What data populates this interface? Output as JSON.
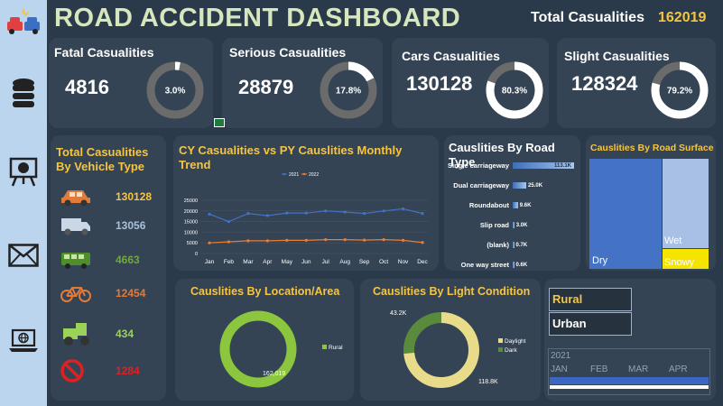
{
  "header": {
    "title": "ROAD ACCIDENT DASHBOARD",
    "total_label": "Total Casualities",
    "total_value": "162019"
  },
  "sidebar": {
    "icons": [
      "car-crash-icon",
      "database-icon",
      "presentation-icon",
      "mail-icon",
      "laptop-globe-icon"
    ]
  },
  "kpis": [
    {
      "title": "Fatal Casualities",
      "value": "4816",
      "pct_label": "3.0%",
      "pct": 0.03
    },
    {
      "title": "Serious Casualities",
      "value": "28879",
      "pct_label": "17.8%",
      "pct": 0.178
    },
    {
      "title": "Cars Casualities",
      "value": "130128",
      "pct_label": "80.3%",
      "pct": 0.803
    },
    {
      "title": "Slight Casualities",
      "value": "128324",
      "pct_label": "79.2%",
      "pct": 0.792
    }
  ],
  "vehicle": {
    "title": "Total Casualities By Vehicle Type",
    "items": [
      {
        "icon": "car-icon",
        "value": "130128",
        "color": "#f5c542"
      },
      {
        "icon": "van-icon",
        "value": "13056",
        "color": "#a9c0d8"
      },
      {
        "icon": "bus-icon",
        "value": "4663",
        "color": "#6fa83a"
      },
      {
        "icon": "bicycle-icon",
        "value": "12454",
        "color": "#e07b39"
      },
      {
        "icon": "tractor-icon",
        "value": "434",
        "color": "#9bd35a"
      },
      {
        "icon": "no-entry-icon",
        "value": "1284",
        "color": "#e02020"
      }
    ]
  },
  "slicer": {
    "options": [
      "Rural",
      "Urban"
    ],
    "year": "2021",
    "months": [
      "JAN",
      "FEB",
      "MAR",
      "APR"
    ]
  },
  "chart_data": [
    {
      "type": "line",
      "title": "CY Casualities  vs  PY Causlities Monthly Trend",
      "categories": [
        "Jan",
        "Feb",
        "Mar",
        "Apr",
        "May",
        "Jun",
        "Jul",
        "Aug",
        "Sep",
        "Oct",
        "Nov",
        "Dec"
      ],
      "series": [
        {
          "name": "2021",
          "color": "#4472c4",
          "values": [
            18500,
            15000,
            18800,
            17800,
            19000,
            19000,
            20000,
            19500,
            18800,
            20000,
            21000,
            18800
          ]
        },
        {
          "name": "2022",
          "color": "#ed7d31",
          "values": [
            5000,
            5500,
            6000,
            6000,
            6200,
            6200,
            6500,
            6500,
            6300,
            6500,
            6200,
            5200
          ]
        }
      ],
      "ylim": [
        0,
        25000
      ],
      "yticks": [
        "0",
        "5000",
        "10000",
        "15000",
        "20000",
        "25000"
      ],
      "legend": "top",
      "grid": true
    },
    {
      "type": "bar",
      "title": "Causlities By Road Type",
      "categories": [
        "Single carriageway",
        "Dual carriageway",
        "Roundabout",
        "Slip road",
        "(blank)",
        "One way street"
      ],
      "values": [
        113.1,
        25.0,
        9.6,
        3.0,
        0.7,
        0.6
      ],
      "labels": [
        "113.1K",
        "25.0K",
        "9.6K",
        "3.0K",
        "0.7K",
        "0.6K"
      ]
    },
    {
      "type": "heatmap",
      "title": "Causlities By Road Surface",
      "categories": [
        "Dry",
        "Wet",
        "Snowy"
      ],
      "colors": [
        "#4472c4",
        "#a9c0e6",
        "#f5e400"
      ]
    },
    {
      "type": "pie",
      "title": "Causlities By Location/Area",
      "categories": [
        "Rural"
      ],
      "values": [
        162019
      ],
      "labels": [
        "162,019"
      ],
      "colors": [
        "#8cc63f"
      ],
      "legend": "right"
    },
    {
      "type": "pie",
      "title": "Causlities By Light Condition",
      "categories": [
        "Daylight",
        "Dark"
      ],
      "values": [
        118.8,
        43.2
      ],
      "labels": [
        "118.8K",
        "43.2K"
      ],
      "colors": [
        "#e8dc8a",
        "#5a8a3c"
      ],
      "legend": "right"
    }
  ]
}
